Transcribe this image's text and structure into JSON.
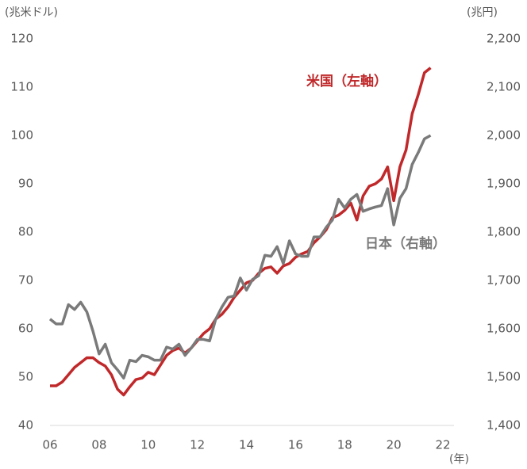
{
  "chart_data": {
    "type": "line",
    "y_label": "(兆米ドル)",
    "y2_label": "(兆円)",
    "x_label": "(年)",
    "annotations": [
      "米国（左軸）",
      "日本（右軸）"
    ],
    "x": [
      6,
      6.25,
      6.5,
      6.75,
      7,
      7.25,
      7.5,
      7.75,
      8,
      8.25,
      8.5,
      8.75,
      9,
      9.25,
      9.5,
      9.75,
      10,
      10.25,
      10.5,
      10.75,
      11,
      11.25,
      11.5,
      11.75,
      12,
      12.25,
      12.5,
      12.75,
      13,
      13.25,
      13.5,
      13.75,
      14,
      14.25,
      14.5,
      14.75,
      15,
      15.25,
      15.5,
      15.75,
      16,
      16.25,
      16.5,
      16.75,
      17,
      17.25,
      17.5,
      17.75,
      18,
      18.25,
      18.5,
      18.75,
      19,
      19.25,
      19.5,
      19.75,
      20,
      20.25,
      20.5,
      20.75,
      21,
      21.25,
      21.5
    ],
    "series": [
      {
        "name": "米国",
        "color": "#c0282a",
        "axis": "y",
        "values": [
          48.2,
          48.2,
          49,
          50.5,
          52,
          53,
          54,
          54,
          53,
          52.3,
          50.5,
          47.5,
          46.3,
          48,
          49.5,
          49.8,
          51,
          50.5,
          52.5,
          54.5,
          55.5,
          56,
          55,
          56,
          57.5,
          59,
          60,
          62,
          63,
          64.5,
          66.5,
          68,
          69.5,
          70,
          71.5,
          72.5,
          72.8,
          71.5,
          73,
          73.5,
          74.8,
          75.5,
          76,
          77.8,
          79,
          80.5,
          83,
          83.5,
          84.5,
          86,
          82.5,
          87.5,
          89.5,
          90,
          91,
          93.5,
          86.5,
          93.5,
          97,
          104.5,
          108.5,
          113,
          114
        ]
      },
      {
        "name": "日本",
        "color": "#7a7a7a",
        "axis": "y2",
        "values": [
          1620,
          1610,
          1610,
          1650,
          1640,
          1655,
          1635,
          1595,
          1548,
          1568,
          1530,
          1515,
          1498,
          1535,
          1532,
          1545,
          1542,
          1535,
          1535,
          1562,
          1558,
          1568,
          1545,
          1560,
          1578,
          1578,
          1575,
          1620,
          1645,
          1665,
          1668,
          1705,
          1680,
          1702,
          1710,
          1752,
          1750,
          1770,
          1735,
          1782,
          1755,
          1750,
          1750,
          1790,
          1790,
          1810,
          1825,
          1868,
          1850,
          1868,
          1878,
          1843,
          1848,
          1852,
          1855,
          1890,
          1815,
          1870,
          1890,
          1940,
          1965,
          1993,
          2000
        ]
      }
    ],
    "xlim": [
      6,
      22
    ],
    "xticks": [
      {
        "value": 6,
        "label": "06"
      },
      {
        "value": 8,
        "label": "08"
      },
      10,
      12,
      14,
      16,
      18,
      20,
      22
    ],
    "ylim": [
      40,
      120
    ],
    "yticks": [
      40,
      50,
      60,
      70,
      80,
      90,
      100,
      110,
      120
    ],
    "y2lim": [
      1400,
      2200
    ],
    "y2ticks": [
      {
        "value": 1400,
        "label": "1,400"
      },
      {
        "value": 1500,
        "label": "1,500"
      },
      {
        "value": 1600,
        "label": "1,600"
      },
      {
        "value": 1700,
        "label": "1,700"
      },
      {
        "value": 1800,
        "label": "1,800"
      },
      {
        "value": 1900,
        "label": "1,900"
      },
      {
        "value": 2000,
        "label": "2,000"
      },
      {
        "value": 2100,
        "label": "2,100"
      },
      {
        "value": 2200,
        "label": "2,200"
      }
    ],
    "grid": false
  }
}
